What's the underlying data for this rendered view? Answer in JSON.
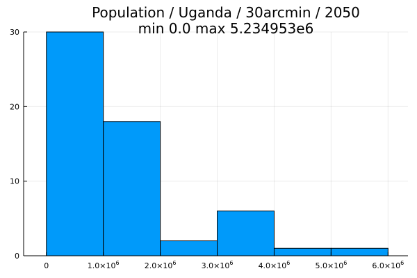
{
  "chart_data": {
    "type": "bar",
    "title": "Population / Uganda / 30arcmin / 2050",
    "subtitle": "min 0.0  max 5.234953e6",
    "bin_edges": [
      0,
      1000000,
      2000000,
      3000000,
      4000000,
      5000000,
      6000000
    ],
    "values": [
      30,
      18,
      2,
      6,
      1,
      1
    ],
    "xlim": [
      -400000,
      6350000
    ],
    "ylim": [
      0,
      30
    ],
    "x_ticks": [
      {
        "value": 0,
        "mantissa": "0",
        "exp": ""
      },
      {
        "value": 1000000,
        "mantissa": "1.0×10",
        "exp": "6"
      },
      {
        "value": 2000000,
        "mantissa": "2.0×10",
        "exp": "6"
      },
      {
        "value": 3000000,
        "mantissa": "3.0×10",
        "exp": "6"
      },
      {
        "value": 4000000,
        "mantissa": "4.0×10",
        "exp": "6"
      },
      {
        "value": 5000000,
        "mantissa": "5.0×10",
        "exp": "6"
      },
      {
        "value": 6000000,
        "mantissa": "6.0×10",
        "exp": "6"
      }
    ],
    "y_ticks": [
      {
        "value": 0,
        "label": "0"
      },
      {
        "value": 10,
        "label": "10"
      },
      {
        "value": 20,
        "label": "20"
      },
      {
        "value": 30,
        "label": "30"
      }
    ],
    "grid": true,
    "legend": "none",
    "bar_color": "#009AFA",
    "edge_color": "#000000"
  }
}
